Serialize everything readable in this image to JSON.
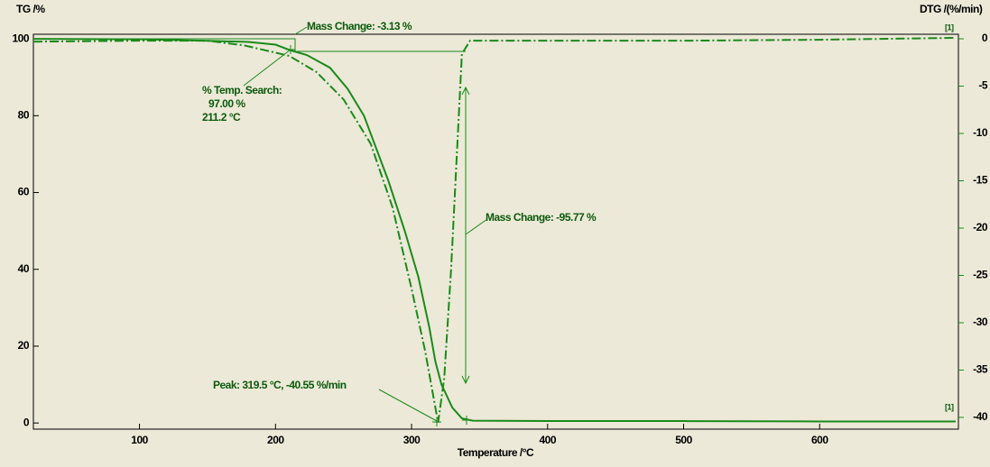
{
  "chart_data": {
    "type": "line",
    "ylabel": "TG /%",
    "y2label": "DTG /(%/min)",
    "xlabel": "Temperature /°C",
    "xlim": [
      22,
      702
    ],
    "xticks": [
      100,
      200,
      300,
      400,
      500,
      600
    ],
    "ylim": [
      -1.6,
      101.2
    ],
    "yticks": [
      0,
      20,
      40,
      60,
      80,
      100
    ],
    "y2lim": [
      -41.24,
      0.48
    ],
    "y2ticks": [
      0,
      -5,
      -10,
      -15,
      -20,
      -25,
      -30,
      -35,
      -40
    ],
    "series": [
      {
        "name": "TG",
        "color": "#1a8a1a",
        "dash": false,
        "x": [
          22,
          100,
          150,
          180,
          200,
          211.2,
          223,
          240,
          253,
          265,
          283,
          295,
          305,
          313,
          317.5,
          322,
          330,
          337,
          345,
          400,
          500,
          600,
          700
        ],
        "values": [
          100,
          99.9,
          99.5,
          99.2,
          98.5,
          97,
          95.8,
          92.5,
          87,
          80,
          63,
          50,
          38,
          25,
          16,
          10,
          4,
          1.2,
          0.6,
          0.5,
          0.5,
          0.4,
          0.4
        ]
      },
      {
        "name": "DTG",
        "color": "#1a8a1a",
        "dash": true,
        "axis": "y2",
        "x": [
          22,
          100,
          150,
          177,
          210,
          230,
          250,
          270,
          286,
          300,
          310,
          319.5,
          324,
          329,
          334,
          337,
          343,
          400,
          500,
          600,
          700
        ],
        "values": [
          -0.3,
          -0.2,
          -0.2,
          -0.7,
          -1.8,
          -3.5,
          -6.4,
          -11.1,
          -17.8,
          -26.4,
          -33,
          -40.55,
          -35.9,
          -24.5,
          -10.2,
          -1.6,
          -0.2,
          -0.2,
          -0.2,
          -0.1,
          0.1
        ]
      }
    ],
    "annotations": [
      "Mass Change: -3.13 %",
      "% Temp. Search:",
      "97.00 %",
      "211.2 °C",
      "Mass Change: -95.77 %",
      "Peak: 319.5 °C, -40.55 %/min",
      "[1]",
      "[1]"
    ]
  }
}
